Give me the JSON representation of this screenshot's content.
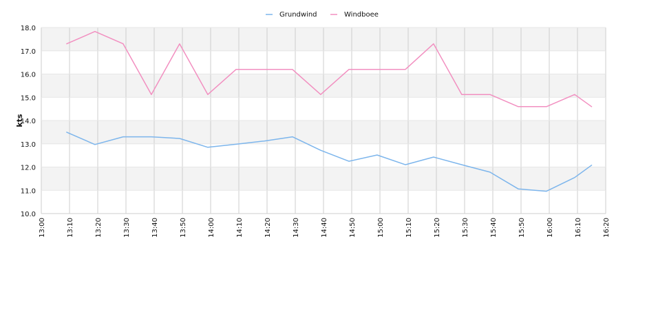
{
  "chart_data": {
    "type": "line",
    "title": "",
    "xlabel": "",
    "ylabel": "kts",
    "x_ticks": [
      "13:00",
      "13:10",
      "13:20",
      "13:30",
      "13:40",
      "13:50",
      "14:00",
      "14:10",
      "14:20",
      "14:30",
      "14:40",
      "14:50",
      "15:00",
      "15:10",
      "15:20",
      "15:30",
      "15:40",
      "15:50",
      "16:00",
      "16:10",
      "16:20"
    ],
    "y_ticks": [
      "10.0",
      "11.0",
      "12.0",
      "13.0",
      "14.0",
      "15.0",
      "16.0",
      "17.0",
      "18.0"
    ],
    "ylim": [
      10,
      18
    ],
    "xlim": [
      "13:00",
      "16:20"
    ],
    "grid": true,
    "legend_position": "top-center",
    "x": [
      "13:09",
      "13:19",
      "13:29",
      "13:39",
      "13:49",
      "13:59",
      "14:09",
      "14:19",
      "14:29",
      "14:39",
      "14:49",
      "14:59",
      "15:09",
      "15:19",
      "15:29",
      "15:39",
      "15:49",
      "15:59",
      "16:09",
      "16:15"
    ],
    "series": [
      {
        "name": "Grundwind",
        "color": "#7cb5ec",
        "values": [
          13.5,
          12.97,
          13.3,
          13.3,
          13.23,
          12.85,
          12.98,
          13.12,
          13.3,
          12.72,
          12.25,
          12.52,
          12.1,
          12.43,
          12.1,
          11.78,
          11.06,
          10.96,
          11.55,
          12.08
        ]
      },
      {
        "name": "Windboee",
        "color": "#f28fc0",
        "values": [
          17.3,
          17.83,
          17.3,
          15.12,
          17.3,
          15.12,
          16.2,
          16.2,
          16.2,
          15.12,
          16.2,
          16.2,
          16.2,
          17.3,
          15.12,
          15.12,
          14.6,
          14.6,
          15.12,
          14.6
        ]
      }
    ]
  }
}
